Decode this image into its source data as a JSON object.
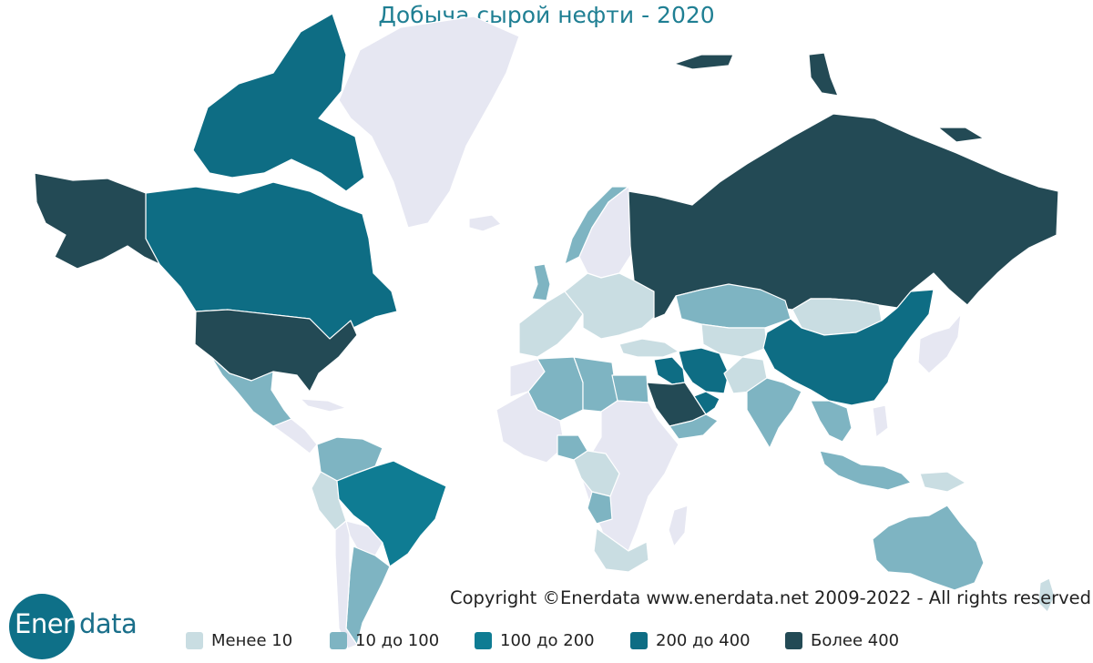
{
  "title": "Добыча сырой нефти - 2020",
  "copyright": "Copyright ©Enerdata www.enerdata.net 2009-2022 - All rights reserved",
  "logo": {
    "part1": "Ener",
    "part2": "data"
  },
  "colors": {
    "no_data": "#e6e7f2",
    "lt10": "#c9dde2",
    "10_100": "#7eb4c2",
    "100_200": "#0f7c93",
    "200_400": "#0e6d84",
    "gt400": "#234a55",
    "title": "#1f7f93"
  },
  "legend": [
    {
      "label": "Менее 10",
      "color": "#c9dde2"
    },
    {
      "label": "10 до 100",
      "color": "#7eb4c2"
    },
    {
      "label": "100 до 200",
      "color": "#0f7c93"
    },
    {
      "label": "200 до 400",
      "color": "#0e6d84"
    },
    {
      "label": "Более 400",
      "color": "#234a55"
    }
  ],
  "regions": {
    "greenland": "no_data",
    "canada": "200_400",
    "canada_islands": "200_400",
    "alaska": "gt400",
    "usa": "gt400",
    "mexico": "10_100",
    "central_america": "no_data",
    "cuba": "no_data",
    "venezuela_colombia": "10_100",
    "ecuador_peru": "lt10",
    "brazil": "100_200",
    "bolivia_paraguay": "no_data",
    "argentina": "10_100",
    "chile": "no_data",
    "iceland": "no_data",
    "norway": "10_100",
    "sweden_finland": "no_data",
    "uk": "10_100",
    "western_europe": "lt10",
    "eastern_europe": "lt10",
    "russia": "gt400",
    "russia_arctic_islands": "gt400",
    "kazakhstan": "10_100",
    "central_asia": "lt10",
    "mongolia": "lt10",
    "china": "200_400",
    "japan_korea": "no_data",
    "turkey": "lt10",
    "iran": "200_400",
    "iraq": "200_400",
    "saudi_arabia": "gt400",
    "gulf_states": "200_400",
    "oman_yemen": "10_100",
    "egypt": "10_100",
    "libya": "10_100",
    "algeria": "10_100",
    "morocco": "no_data",
    "west_africa": "no_data",
    "nigeria": "10_100",
    "central_africa": "lt10",
    "angola": "10_100",
    "east_africa": "no_data",
    "southern_africa": "lt10",
    "madagascar": "no_data",
    "india": "10_100",
    "pakistan_afghanistan": "lt10",
    "southeast_asia": "10_100",
    "indonesia": "10_100",
    "philippines": "no_data",
    "australia": "10_100",
    "new_zealand": "lt10",
    "papua": "lt10"
  }
}
